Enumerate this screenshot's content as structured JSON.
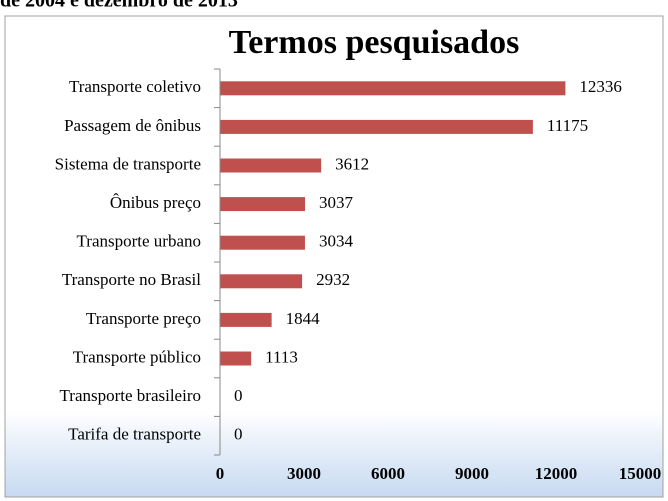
{
  "chart_data": {
    "type": "hbar",
    "subtitle": "de 2004 e dezembro de 2013",
    "title": "Termos pesquisados",
    "categories": [
      "Transporte coletivo",
      "Passagem de ônibus",
      "Sistema de transporte",
      "Ônibus preço",
      "Transporte urbano",
      "Transporte no Brasil",
      "Transporte preço",
      "Transporte público",
      "Transporte brasileiro",
      "Tarifa de transporte"
    ],
    "values": [
      12336,
      11175,
      3612,
      3037,
      3034,
      2932,
      1844,
      1113,
      0,
      0
    ],
    "color": "#c0504d",
    "xlim": [
      0,
      15000
    ],
    "xticks": [
      0,
      3000,
      6000,
      9000,
      12000,
      15000
    ]
  }
}
